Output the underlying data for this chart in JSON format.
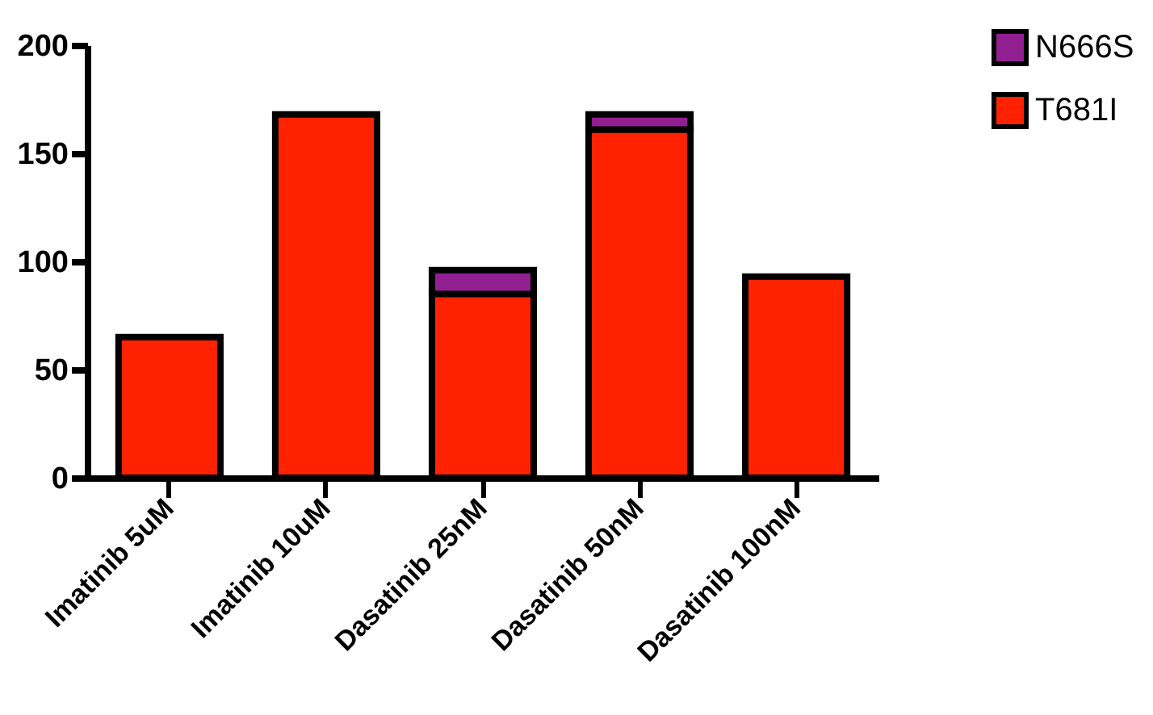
{
  "chart_data": {
    "type": "bar",
    "stacked": true,
    "categories": [
      "Imatinib 5uM",
      "Imatinib 10uM",
      "Dasatinib 25nM",
      "Dasatinib 50nM",
      "Dasatinib 100nM"
    ],
    "series": [
      {
        "name": "T681I",
        "color": "#ff2200",
        "values": [
          65,
          168,
          85,
          161,
          93
        ]
      },
      {
        "name": "N666S",
        "color": "#921f91",
        "values": [
          null,
          null,
          11,
          7,
          null
        ]
      }
    ],
    "ylim": [
      0,
      200
    ],
    "yticks": [
      0,
      50,
      100,
      150,
      200
    ],
    "grid": false,
    "legend": "top right"
  }
}
